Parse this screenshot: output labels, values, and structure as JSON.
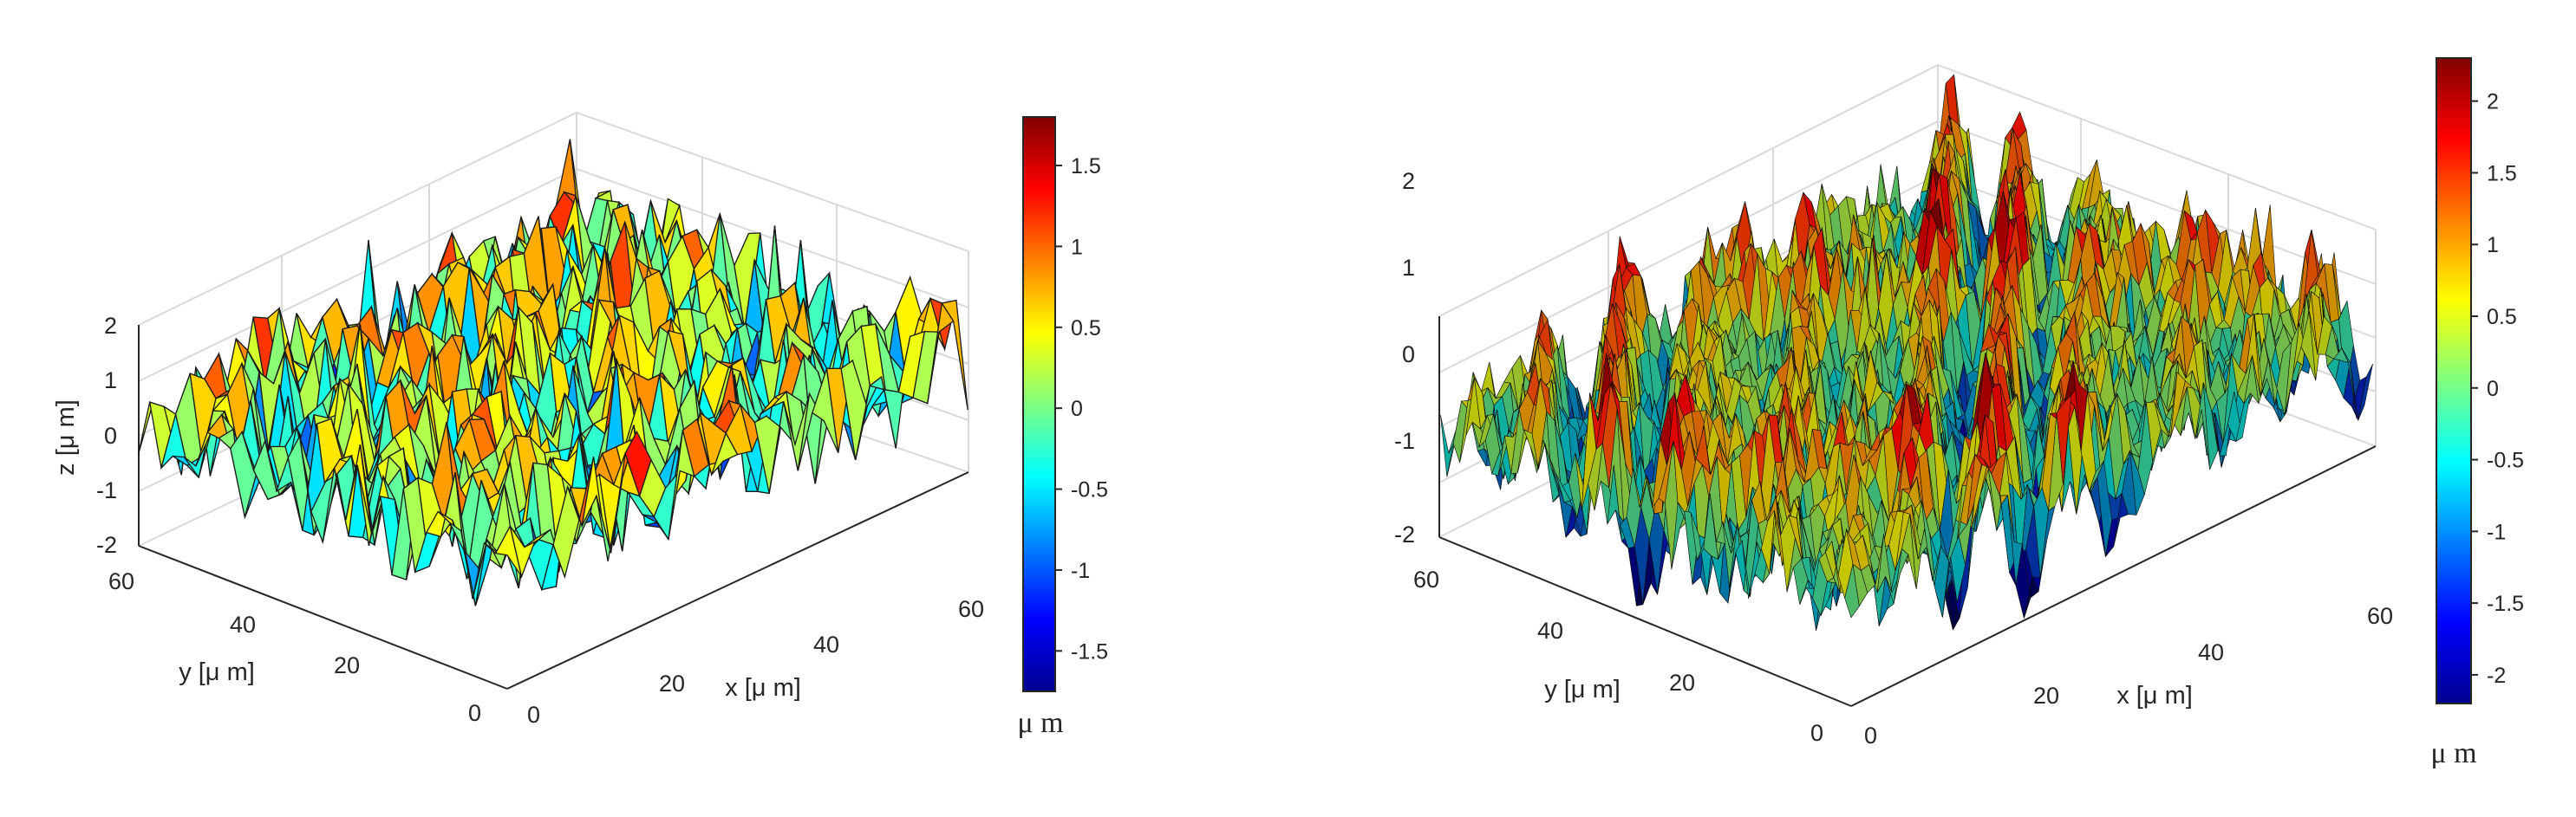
{
  "chart_data": [
    {
      "type": "surface3d",
      "shading": "faceted",
      "xlabel": "x [μ m]",
      "ylabel": "y [μ m]",
      "zlabel": "z [μ m]",
      "x_ticks": [
        "0",
        "20",
        "40",
        "60"
      ],
      "y_ticks": [
        "0",
        "20",
        "40",
        "60"
      ],
      "z_ticks": [
        "2",
        "1",
        "0",
        "-1",
        "-2"
      ],
      "xlim": [
        0,
        64
      ],
      "ylim": [
        0,
        64
      ],
      "zlim": [
        -2,
        2
      ],
      "grid": true,
      "colormap": "jet",
      "colorbar": {
        "range": [
          -1.75,
          1.8
        ],
        "ticks": [
          "1.5",
          "1",
          "0.5",
          "0",
          "-0.5",
          "-1",
          "-1.5"
        ],
        "unit": "μ m",
        "placement": "right"
      }
    },
    {
      "type": "surface3d",
      "shading": "dense mesh",
      "xlabel": "x [μ m]",
      "ylabel": "y [μ m]",
      "x_ticks": [
        "0",
        "20",
        "40",
        "60"
      ],
      "y_ticks": [
        "0",
        "20",
        "40",
        "60"
      ],
      "z_ticks": [
        "2",
        "1",
        "0",
        "-1",
        "-2"
      ],
      "xlim": [
        0,
        64
      ],
      "ylim": [
        0,
        64
      ],
      "zlim": [
        -2,
        2
      ],
      "grid": true,
      "colormap": "jet",
      "colorbar": {
        "range": [
          -2.2,
          2.3
        ],
        "ticks": [
          "2",
          "1.5",
          "1",
          "0.5",
          "0",
          "-0.5",
          "-1",
          "-1.5",
          "-2"
        ],
        "unit": "μ m",
        "placement": "right"
      }
    }
  ]
}
